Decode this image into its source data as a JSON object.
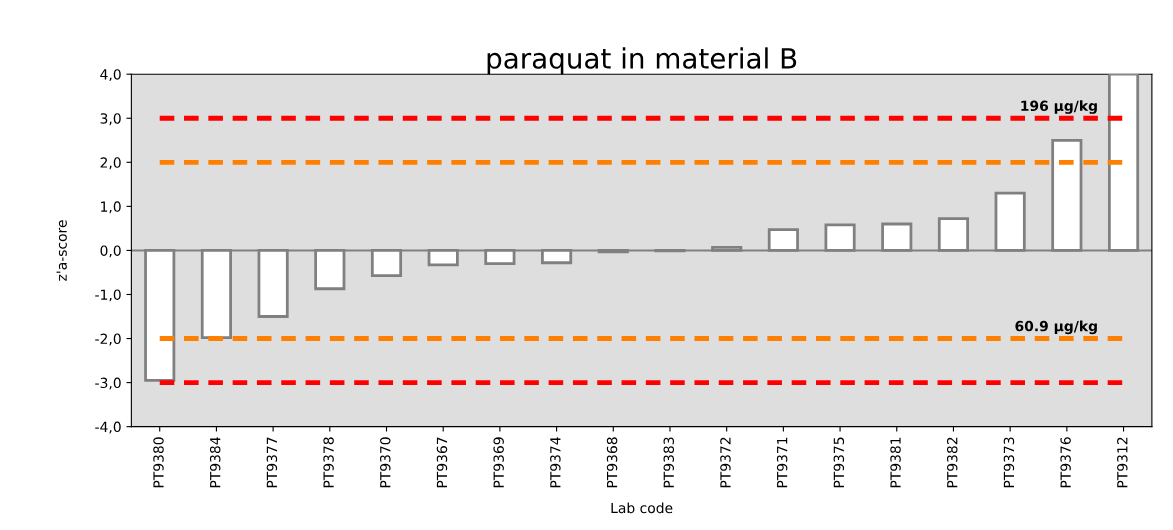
{
  "chart_data": {
    "type": "bar",
    "title": "paraquat in material B",
    "xlabel": "Lab code",
    "ylabel": "z'a-score",
    "categories": [
      "PT9380",
      "PT9384",
      "PT9377",
      "PT9378",
      "PT9370",
      "PT9367",
      "PT9369",
      "PT9374",
      "PT9368",
      "PT9383",
      "PT9372",
      "PT9371",
      "PT9375",
      "PT9381",
      "PT9382",
      "PT9373",
      "PT9376",
      "PT9312"
    ],
    "values": [
      -2.95,
      -1.98,
      -1.5,
      -0.87,
      -0.57,
      -0.33,
      -0.3,
      -0.28,
      -0.03,
      -0.01,
      0.07,
      0.47,
      0.58,
      0.6,
      0.72,
      1.3,
      2.5,
      4.0
    ],
    "color": "#ffffff",
    "ylim": [
      -4,
      4
    ],
    "yticks": [
      {
        "value": -4,
        "label": "-4,0"
      },
      {
        "value": -3,
        "label": "-3,0"
      },
      {
        "value": -2,
        "label": "-2,0"
      },
      {
        "value": -1,
        "label": "-1,0"
      },
      {
        "value": 0,
        "label": "0,0"
      },
      {
        "value": 1,
        "label": "1,0"
      },
      {
        "value": 2,
        "label": "2,0"
      },
      {
        "value": 3,
        "label": "3,0"
      },
      {
        "value": 4,
        "label": "4,0"
      }
    ],
    "ref_lines": [
      {
        "axis": "y",
        "value": 3,
        "label": "196 µg/kg",
        "color": "#ff0000",
        "line_style": "dashed"
      },
      {
        "axis": "y",
        "value": 2,
        "label": null,
        "color": "#ff8000",
        "line_style": "dashed"
      },
      {
        "axis": "y",
        "value": -2,
        "label": "60.9 µg/kg",
        "color": "#ff8000",
        "line_style": "dashed"
      },
      {
        "axis": "y",
        "value": -3,
        "label": null,
        "color": "#ff0000",
        "line_style": "dashed"
      }
    ],
    "grid": false,
    "legend": false
  }
}
